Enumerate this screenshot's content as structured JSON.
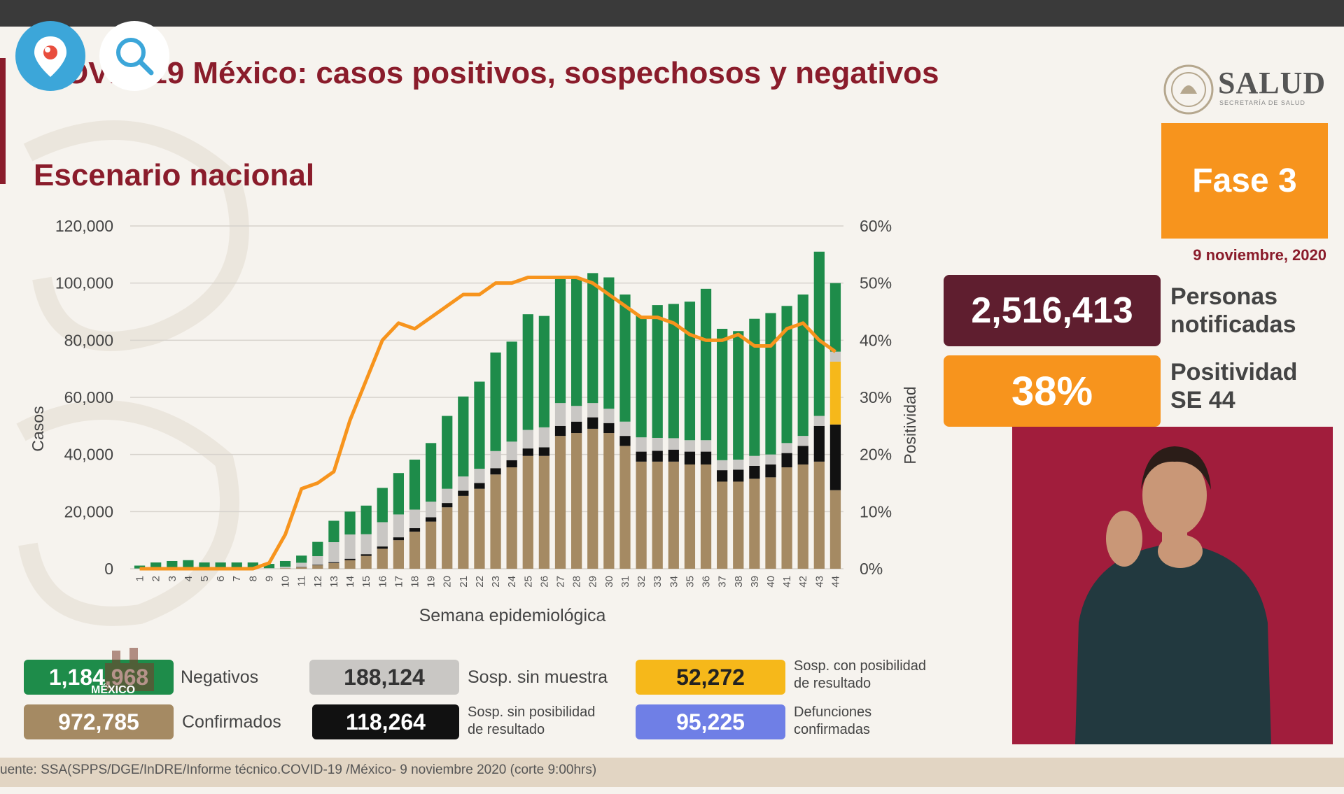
{
  "slide": {
    "title": "OVID-19 México: casos positivos, sospechosos y negativos",
    "subtitle": "Escenario nacional",
    "phase": "Fase 3",
    "date": "9 noviembre, 2020",
    "notified_value": "2,516,413",
    "notified_label_1": "Personas",
    "notified_label_2": "notificadas",
    "positivity_value": "38%",
    "positivity_label_1": "Positividad",
    "positivity_label_2": "SE 44",
    "brand": "SALUD",
    "brand_sub": "SECRETARÍA DE SALUD",
    "source": "uente: SSA(SPPS/DGE/InDRE/Informe técnico.COVID-19 /México- 9 noviembre 2020 (corte 9:00hrs)",
    "gob_text": "MÉXICO"
  },
  "summary": [
    {
      "value": "1,184,968",
      "label": "Negativos",
      "color": "#1e8c4a"
    },
    {
      "value": "972,785",
      "label": "Confirmados",
      "color": "#a58a63"
    },
    {
      "value": "188,124",
      "label": "Sosp. sin muestra",
      "color": "#c9c7c4"
    },
    {
      "value": "118,264",
      "label": "Sosp. sin posibilidad de resultado",
      "label_1": "Sosp. sin posibilidad",
      "label_2": "de resultado",
      "color": "#111111"
    },
    {
      "value": "52,272",
      "label": "Sosp. con posibilidad de resultado",
      "label_1": "Sosp. con posibilidad",
      "label_2": "de resultado",
      "color": "#f6b81a"
    },
    {
      "value": "95,225",
      "label": "Defunciones confirmadas",
      "label_1": "Defunciones",
      "label_2": "confirmadas",
      "color": "#6f7fe6"
    }
  ],
  "chart_data": {
    "type": "bar",
    "stacked": true,
    "xlabel": "Semana epidemiológica",
    "ylabel": "Casos",
    "y2label": "Positividad",
    "ylim": [
      0,
      120000
    ],
    "y2lim": [
      0,
      60
    ],
    "yticks": [
      "0",
      "20,000",
      "40,000",
      "60,000",
      "80,000",
      "100,000",
      "120,000"
    ],
    "y2ticks": [
      "0%",
      "10%",
      "20%",
      "30%",
      "40%",
      "50%",
      "60%"
    ],
    "grid": true,
    "categories": [
      "1",
      "2",
      "3",
      "4",
      "5",
      "6",
      "7",
      "8",
      "9",
      "10",
      "11",
      "12",
      "13",
      "14",
      "15",
      "16",
      "17",
      "18",
      "19",
      "20",
      "21",
      "22",
      "23",
      "24",
      "25",
      "26",
      "27",
      "28",
      "29",
      "30",
      "31",
      "32",
      "33",
      "34",
      "35",
      "36",
      "37",
      "38",
      "39",
      "40",
      "41",
      "42",
      "43",
      "44"
    ],
    "series": [
      {
        "name": "Confirmados",
        "color": "#a58a63",
        "values": [
          0,
          0,
          0,
          0,
          0,
          0,
          0,
          0,
          0,
          200,
          500,
          1200,
          2000,
          3000,
          4500,
          7000,
          10000,
          13000,
          16500,
          21500,
          25500,
          28000,
          33000,
          35500,
          39500,
          39500,
          46500,
          47500,
          49000,
          47500,
          43000,
          37500,
          37500,
          37500,
          36500,
          36500,
          30500,
          30500,
          31500,
          32000,
          35500,
          36500,
          37500,
          27500
        ]
      },
      {
        "name": "Sosp. sin posibilidad de resultado",
        "color": "#111111",
        "values": [
          0,
          0,
          0,
          0,
          0,
          0,
          0,
          0,
          0,
          0,
          100,
          200,
          300,
          500,
          600,
          800,
          1000,
          1200,
          1500,
          1500,
          1800,
          2000,
          2200,
          2500,
          2600,
          3000,
          3500,
          4000,
          4000,
          3500,
          3500,
          3500,
          3800,
          4200,
          4500,
          4500,
          4000,
          4200,
          4500,
          4500,
          5000,
          6500,
          12500,
          23000
        ]
      },
      {
        "name": "Sosp. con posibilidad de resultado",
        "color": "#f6b81a",
        "values": [
          0,
          0,
          0,
          0,
          0,
          0,
          0,
          0,
          0,
          0,
          0,
          0,
          0,
          0,
          0,
          0,
          0,
          0,
          0,
          0,
          0,
          0,
          0,
          0,
          0,
          0,
          0,
          0,
          0,
          0,
          0,
          0,
          0,
          0,
          0,
          0,
          0,
          0,
          0,
          0,
          0,
          0,
          0,
          22000
        ]
      },
      {
        "name": "Sosp. sin muestra",
        "color": "#c9c7c4",
        "values": [
          100,
          200,
          200,
          200,
          200,
          200,
          200,
          200,
          200,
          500,
          1500,
          3000,
          7000,
          8500,
          7000,
          8500,
          8000,
          6500,
          5500,
          5000,
          5000,
          5000,
          6000,
          6500,
          6500,
          7000,
          8000,
          5500,
          5000,
          5000,
          5000,
          5000,
          4500,
          4000,
          4000,
          4000,
          3500,
          3500,
          3500,
          3500,
          3500,
          3500,
          3500,
          3500
        ]
      },
      {
        "name": "Negativos",
        "color": "#1e8c4a",
        "values": [
          1000,
          2000,
          2500,
          2800,
          2000,
          2000,
          2000,
          2000,
          1500,
          2000,
          2500,
          5000,
          7500,
          8000,
          10000,
          12000,
          14500,
          17500,
          20500,
          25500,
          28000,
          30500,
          34500,
          35000,
          40500,
          39000,
          43500,
          45000,
          45500,
          46000,
          44500,
          42500,
          46500,
          47000,
          48500,
          53000,
          46000,
          45000,
          48000,
          49500,
          48000,
          49500,
          57500,
          24000
        ]
      }
    ],
    "line": {
      "name": "Positividad",
      "axis": "right",
      "color": "#f7941d",
      "values": [
        0,
        0,
        0,
        0,
        0,
        0,
        0,
        0,
        1,
        6,
        14,
        15,
        17,
        26,
        33,
        40,
        43,
        42,
        44,
        46,
        48,
        48,
        50,
        50,
        51,
        51,
        51,
        51,
        50,
        48,
        46,
        44,
        44,
        43,
        41,
        40,
        40,
        41,
        39,
        39,
        42,
        43,
        40,
        38
      ]
    }
  }
}
